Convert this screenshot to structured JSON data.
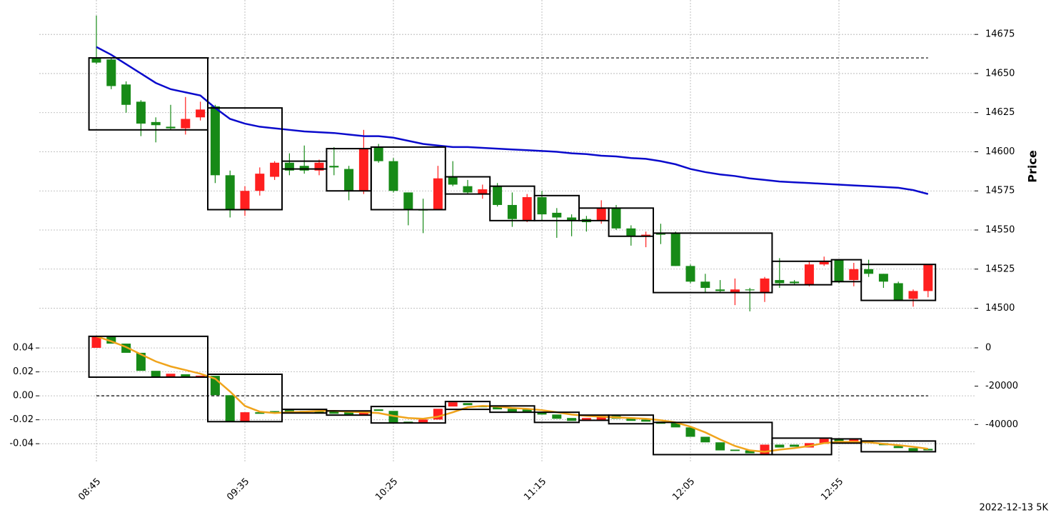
{
  "chart_data": [
    {
      "type": "candlestick",
      "ylabel": "Price",
      "yaxis_side": "right",
      "grid": true,
      "up_color": "#ff1f1f",
      "down_color": "#178a17",
      "ylim": [
        14487,
        14697
      ],
      "yticks": [
        14500,
        14525,
        14550,
        14575,
        14600,
        14625,
        14650,
        14675
      ],
      "candles": {
        "open": [
          14660,
          14659,
          14643,
          14632,
          14619,
          14616,
          14615,
          14622,
          14629,
          14585,
          14563,
          14575,
          14584,
          14593,
          14591,
          14588,
          14591,
          14589,
          14575,
          14603,
          14594,
          14574,
          14563,
          14563,
          14584,
          14578,
          14573,
          14578,
          14566,
          14556,
          14571,
          14561,
          14558,
          14557,
          14556,
          14564,
          14551,
          14546,
          14548,
          14548,
          14527,
          14517,
          14512,
          14510,
          14512,
          14510,
          14518,
          14517,
          14515,
          14528,
          14531,
          14518,
          14525,
          14522,
          14516,
          14506,
          14511
        ],
        "high": [
          14687,
          14660,
          14645,
          14633,
          14622,
          14630,
          14635,
          14632,
          14630,
          14588,
          14578,
          14590,
          14594,
          14599,
          14604,
          14595,
          14603,
          14591,
          14614,
          14605,
          14596,
          14574,
          14570,
          14591,
          14594,
          14582,
          14579,
          14580,
          14574,
          14573,
          14575,
          14564,
          14560,
          14559,
          14569,
          14566,
          14553,
          14549,
          14554,
          14549,
          14528,
          14522,
          14518,
          14519,
          14513,
          14520,
          14532,
          14518,
          14530,
          14533,
          14531,
          14529,
          14531,
          14522,
          14517,
          14512,
          14528
        ],
        "low": [
          14656,
          14640,
          14625,
          14610,
          14606,
          14614,
          14611,
          14620,
          14580,
          14558,
          14559,
          14572,
          14582,
          14585,
          14586,
          14585,
          14585,
          14569,
          14573,
          14593,
          14574,
          14553,
          14548,
          14563,
          14578,
          14573,
          14570,
          14565,
          14552,
          14555,
          14556,
          14545,
          14546,
          14549,
          14554,
          14550,
          14540,
          14539,
          14541,
          14527,
          14516,
          14510,
          14510,
          14502,
          14498,
          14504,
          14513,
          14515,
          14514,
          14527,
          14516,
          14514,
          14520,
          14513,
          14505,
          14501,
          14507
        ],
        "close": [
          14657,
          14642,
          14630,
          14618,
          14617,
          14615,
          14621,
          14627,
          14585,
          14563,
          14575,
          14586,
          14593,
          14588,
          14588,
          14593,
          14590,
          14575,
          14602,
          14594,
          14575,
          14563,
          14563,
          14583,
          14579,
          14574,
          14576,
          14566,
          14557,
          14571,
          14560,
          14558,
          14556,
          14555,
          14564,
          14551,
          14546,
          14547,
          14547,
          14527,
          14517,
          14513,
          14511,
          14512,
          14512,
          14519,
          14516,
          14516,
          14528,
          14530,
          14517,
          14525,
          14522,
          14517,
          14505,
          14511,
          14528
        ]
      },
      "series": [
        {
          "color": "#0a0acc",
          "values": [
            14667,
            14662,
            14656,
            14650,
            14644,
            14640,
            14638,
            14636,
            14628,
            14621,
            14618,
            14616,
            14615,
            14614,
            14613,
            14612.5,
            14612,
            14611,
            14610,
            14610,
            14609,
            14607,
            14605,
            14604,
            14603,
            14603,
            14602.5,
            14602,
            14601.5,
            14601,
            14600.5,
            14600,
            14599,
            14598.5,
            14597.5,
            14597,
            14596,
            14595.5,
            14594,
            14592,
            14589,
            14587,
            14585.5,
            14584.5,
            14583,
            14582,
            14581,
            14580.5,
            14580,
            14579.5,
            14579,
            14578.5,
            14578,
            14577.5,
            14577,
            14575.5,
            14573
          ]
        }
      ],
      "boxes": [
        {
          "start": 0,
          "end": 7,
          "top": 14660,
          "bottom": 14614
        },
        {
          "start": 8,
          "end": 12,
          "top": 14628,
          "bottom": 14563
        },
        {
          "start": 13,
          "end": 15,
          "top": 14594,
          "bottom": 14589
        },
        {
          "start": 16,
          "end": 18,
          "top": 14602,
          "bottom": 14575
        },
        {
          "start": 19,
          "end": 23,
          "top": 14603,
          "bottom": 14563
        },
        {
          "start": 24,
          "end": 26,
          "top": 14584,
          "bottom": 14573
        },
        {
          "start": 27,
          "end": 29,
          "top": 14578,
          "bottom": 14556
        },
        {
          "start": 30,
          "end": 32,
          "top": 14572,
          "bottom": 14556
        },
        {
          "start": 33,
          "end": 34,
          "top": 14564,
          "bottom": 14556
        },
        {
          "start": 35,
          "end": 37,
          "top": 14564,
          "bottom": 14546
        },
        {
          "start": 38,
          "end": 45,
          "top": 14548,
          "bottom": 14510
        },
        {
          "start": 46,
          "end": 49,
          "top": 14530,
          "bottom": 14515
        },
        {
          "start": 50,
          "end": 51,
          "top": 14531,
          "bottom": 14517
        },
        {
          "start": 52,
          "end": 56,
          "top": 14528,
          "bottom": 14505
        }
      ],
      "hline": 14660
    },
    {
      "type": "candlestick",
      "yaxis_side": "left",
      "grid": true,
      "up_color": "#ff1f1f",
      "down_color": "#178a17",
      "categories": [
        "08:45",
        null,
        null,
        null,
        null,
        null,
        null,
        null,
        null,
        null,
        "09:35",
        null,
        null,
        null,
        null,
        null,
        null,
        null,
        null,
        null,
        "10:25",
        null,
        null,
        null,
        null,
        null,
        null,
        null,
        null,
        null,
        "11:15",
        null,
        null,
        null,
        null,
        null,
        null,
        null,
        null,
        null,
        "12:05",
        null,
        null,
        null,
        null,
        null,
        null,
        null,
        null,
        null,
        "12:55",
        null,
        null,
        null,
        null,
        null,
        null
      ],
      "ylim": [
        -0.056,
        0.055
      ],
      "yticks": [
        0.04,
        0.02,
        {
          "value": 0,
          "label": "0.00"
        },
        -0.02,
        -0.04
      ],
      "y2lim": [
        -60000,
        9300
      ],
      "y2ticks": [
        0,
        -20000,
        -40000
      ],
      "candles": {
        "axis": "y2",
        "open": [
          0,
          6000,
          2200,
          -2600,
          -12000,
          -15300,
          -13800,
          -15000,
          -14600,
          -24700,
          -38500,
          -33600,
          -33000,
          -32500,
          -32900,
          -33000,
          -33300,
          -33300,
          -34800,
          -32100,
          -32900,
          -38500,
          -38900,
          -37400,
          -30600,
          -28800,
          -30300,
          -30600,
          -31800,
          -32100,
          -33600,
          -34800,
          -36600,
          -38100,
          -37700,
          -35500,
          -36600,
          -37400,
          -38500,
          -39200,
          -41500,
          -46400,
          -49300,
          -53100,
          -53500,
          -55700,
          -50500,
          -50500,
          -52000,
          -50100,
          -47500,
          -49000,
          -48600,
          -49700,
          -51200,
          -52300,
          -52700
        ],
        "close": [
          6000,
          2200,
          -2600,
          -12000,
          -15300,
          -13500,
          -15000,
          -14500,
          -24700,
          -38500,
          -33600,
          -34400,
          -34000,
          -33300,
          -33600,
          -34000,
          -34400,
          -34800,
          -33300,
          -32900,
          -38900,
          -39200,
          -37400,
          -31800,
          -28400,
          -29900,
          -31000,
          -32100,
          -33300,
          -33300,
          -34800,
          -37000,
          -38100,
          -36600,
          -35500,
          -37000,
          -38100,
          -38500,
          -39600,
          -41500,
          -46400,
          -49300,
          -53500,
          -53800,
          -55000,
          -50500,
          -52000,
          -51600,
          -49700,
          -47500,
          -49000,
          -47800,
          -49700,
          -50800,
          -52300,
          -53800,
          -53500
        ]
      },
      "series": [
        {
          "color": "#f0a41c",
          "axis": "y2",
          "values": [
            6000,
            3400,
            400,
            -3400,
            -7100,
            -9700,
            -11600,
            -13500,
            -16100,
            -22800,
            -30300,
            -33300,
            -34000,
            -33600,
            -33300,
            -32900,
            -32900,
            -33300,
            -33600,
            -34000,
            -35500,
            -36600,
            -37000,
            -35900,
            -33600,
            -31000,
            -30300,
            -30600,
            -31400,
            -31800,
            -32500,
            -33600,
            -34800,
            -35500,
            -35900,
            -36300,
            -36600,
            -37000,
            -37800,
            -38900,
            -41100,
            -44100,
            -47800,
            -51200,
            -53500,
            -54200,
            -53100,
            -52300,
            -51200,
            -49700,
            -49000,
            -49000,
            -49300,
            -50100,
            -50800,
            -51600,
            -52700
          ]
        }
      ],
      "boxes_axis": "y2",
      "boxes": [
        {
          "start": 0,
          "end": 7,
          "top": 6000,
          "bottom": -15300
        },
        {
          "start": 8,
          "end": 12,
          "top": -13800,
          "bottom": -38500
        },
        {
          "start": 13,
          "end": 15,
          "top": -32100,
          "bottom": -34000
        },
        {
          "start": 16,
          "end": 18,
          "top": -32900,
          "bottom": -35100
        },
        {
          "start": 19,
          "end": 23,
          "top": -30600,
          "bottom": -39200
        },
        {
          "start": 24,
          "end": 26,
          "top": -28000,
          "bottom": -32100
        },
        {
          "start": 27,
          "end": 29,
          "top": -30300,
          "bottom": -33600
        },
        {
          "start": 30,
          "end": 32,
          "top": -33600,
          "bottom": -38900
        },
        {
          "start": 33,
          "end": 34,
          "top": -35100,
          "bottom": -37800
        },
        {
          "start": 35,
          "end": 37,
          "top": -35100,
          "bottom": -39600
        },
        {
          "start": 38,
          "end": 45,
          "top": -38900,
          "bottom": -55700
        },
        {
          "start": 46,
          "end": 49,
          "top": -47100,
          "bottom": -55700
        },
        {
          "start": 50,
          "end": 51,
          "top": -47500,
          "bottom": -49700
        },
        {
          "start": 52,
          "end": 56,
          "top": -48600,
          "bottom": -54200
        }
      ],
      "hline": 0,
      "annotation": "2022-12-13 5K"
    }
  ]
}
